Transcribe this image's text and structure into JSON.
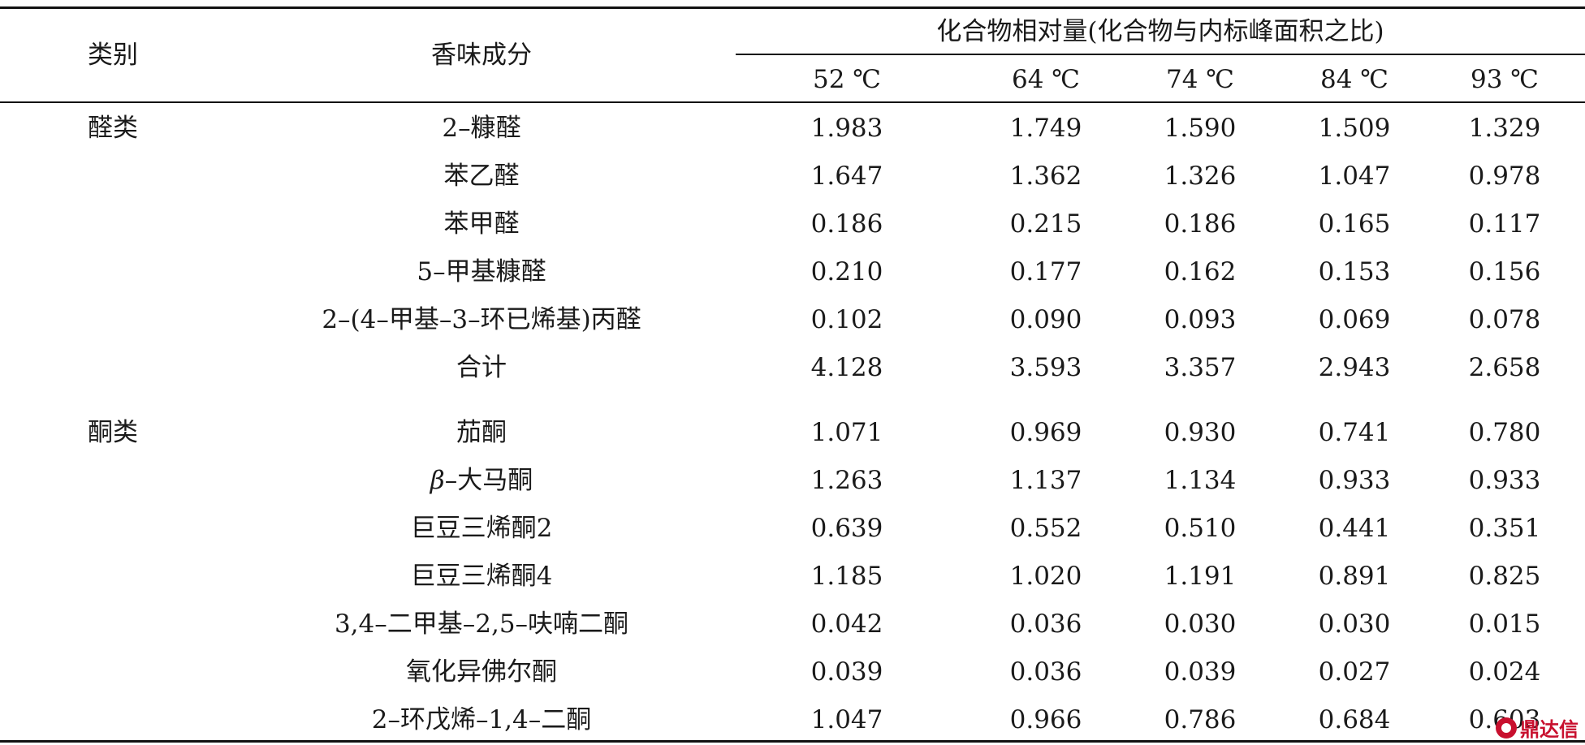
{
  "header": {
    "category": "类别",
    "component": "香味成分",
    "group": "化合物相对量(化合物与内标峰面积之比)",
    "temperatures": [
      "52 ℃",
      "64 ℃",
      "74 ℃",
      "84 ℃",
      "93 ℃"
    ]
  },
  "rows": [
    {
      "category": "醛类",
      "component": "2–糠醛",
      "values": [
        "1.983",
        "1.749",
        "1.590",
        "1.509",
        "1.329"
      ]
    },
    {
      "category": "",
      "component": "苯乙醛",
      "values": [
        "1.647",
        "1.362",
        "1.326",
        "1.047",
        "0.978"
      ]
    },
    {
      "category": "",
      "component": "苯甲醛",
      "values": [
        "0.186",
        "0.215",
        "0.186",
        "0.165",
        "0.117"
      ]
    },
    {
      "category": "",
      "component": "5–甲基糠醛",
      "values": [
        "0.210",
        "0.177",
        "0.162",
        "0.153",
        "0.156"
      ]
    },
    {
      "category": "",
      "component": "2–(4–甲基–3–环已烯基)丙醛",
      "values": [
        "0.102",
        "0.090",
        "0.093",
        "0.069",
        "0.078"
      ]
    },
    {
      "category": "",
      "component": "合计",
      "values": [
        "4.128",
        "3.593",
        "3.357",
        "2.943",
        "2.658"
      ]
    },
    {
      "category": "酮类",
      "component": "茄酮",
      "values": [
        "1.071",
        "0.969",
        "0.930",
        "0.741",
        "0.780"
      ]
    },
    {
      "category": "",
      "component_prefix": "β",
      "component": "–大马酮",
      "values": [
        "1.263",
        "1.137",
        "1.134",
        "0.933",
        "0.933"
      ]
    },
    {
      "category": "",
      "component": "巨豆三烯酮2",
      "values": [
        "0.639",
        "0.552",
        "0.510",
        "0.441",
        "0.351"
      ]
    },
    {
      "category": "",
      "component": "巨豆三烯酮4",
      "values": [
        "1.185",
        "1.020",
        "1.191",
        "0.891",
        "0.825"
      ]
    },
    {
      "category": "",
      "component": "3,4–二甲基–2,5–呋喃二酮",
      "values": [
        "0.042",
        "0.036",
        "0.030",
        "0.030",
        "0.015"
      ]
    },
    {
      "category": "",
      "component": "氧化异佛尔酮",
      "values": [
        "0.039",
        "0.036",
        "0.039",
        "0.027",
        "0.024"
      ]
    },
    {
      "category": "",
      "component": "2–环戊烯–1,4–二酮",
      "values": [
        "1.047",
        "0.966",
        "0.786",
        "0.684",
        "0.603"
      ]
    }
  ],
  "watermark": "鼎达信"
}
